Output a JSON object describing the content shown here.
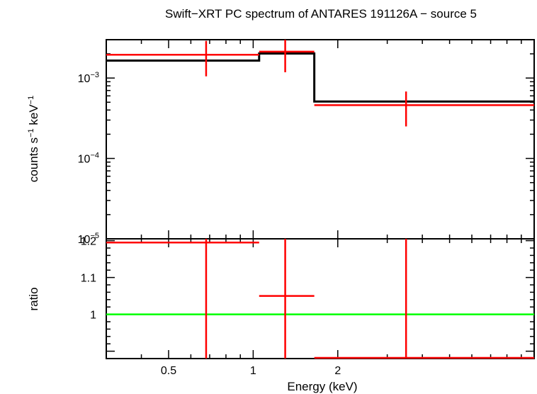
{
  "chart_data": [
    {
      "panel": "spectrum",
      "type": "line",
      "title": "Swift−XRT PC spectrum of ANTARES 191126A − source 5",
      "xlabel": "",
      "ylabel": {
        "main": "counts s",
        "exp1": "−1",
        "mid": " keV",
        "exp2": "−1"
      },
      "x_scale": "log",
      "y_scale": "log",
      "xlim": [
        0.3,
        10
      ],
      "ylim": [
        1e-05,
        0.003
      ],
      "y_ticks": [
        {
          "value": 0.001,
          "base": "10",
          "exp": "−3"
        },
        {
          "value": 0.0001,
          "base": "10",
          "exp": "−4"
        },
        {
          "value": 1e-05,
          "base": "10",
          "exp": "−5"
        }
      ],
      "series": [
        {
          "kind": "data",
          "color": "#ff0000",
          "points": [
            {
              "x_lo": 0.3,
              "x_hi": 1.05,
              "x": 0.68,
              "y": 0.00195,
              "y_lo": 0.00105,
              "y_hi": 0.0029
            },
            {
              "x_lo": 1.05,
              "x_hi": 1.65,
              "x": 1.3,
              "y": 0.00213,
              "y_lo": 0.00118,
              "y_hi": 0.003
            },
            {
              "x_lo": 1.65,
              "x_hi": 10,
              "x": 3.5,
              "y": 0.00046,
              "y_lo": 0.00025,
              "y_hi": 0.00068
            }
          ]
        },
        {
          "kind": "model",
          "color": "#000000",
          "steps": [
            {
              "x_lo": 0.3,
              "x_hi": 1.05,
              "y": 0.00165
            },
            {
              "x_lo": 1.05,
              "x_hi": 1.65,
              "y": 0.00202
            },
            {
              "x_lo": 1.65,
              "x_hi": 10,
              "y": 0.00051
            }
          ]
        }
      ]
    },
    {
      "panel": "ratio",
      "type": "scatter",
      "xlabel": "Energy (keV)",
      "ylabel": "ratio",
      "x_scale": "log",
      "xlim": [
        0.3,
        10
      ],
      "ylim": [
        0.88,
        1.205
      ],
      "x_ticks": [
        {
          "value": 0.5,
          "label": "0.5"
        },
        {
          "value": 1,
          "label": "1"
        },
        {
          "value": 2,
          "label": "2"
        }
      ],
      "y_ticks": [
        {
          "value": 1,
          "label": "1"
        },
        {
          "value": 1.1,
          "label": "1.1"
        },
        {
          "value": 1.2,
          "label": "1.2"
        }
      ],
      "reference_line": {
        "y": 1,
        "color": "#00ff00"
      },
      "points": [
        {
          "x_lo": 0.3,
          "x_hi": 1.05,
          "x": 0.68,
          "y": 1.195,
          "y_lo": 0.88,
          "y_hi": 1.205
        },
        {
          "x_lo": 1.05,
          "x_hi": 1.65,
          "x": 1.3,
          "y": 1.05,
          "y_lo": 0.88,
          "y_hi": 1.205
        },
        {
          "x_lo": 1.65,
          "x_hi": 10,
          "x": 3.5,
          "y": 0.882,
          "y_lo": 0.88,
          "y_hi": 1.205
        }
      ],
      "color": "#ff0000"
    }
  ]
}
